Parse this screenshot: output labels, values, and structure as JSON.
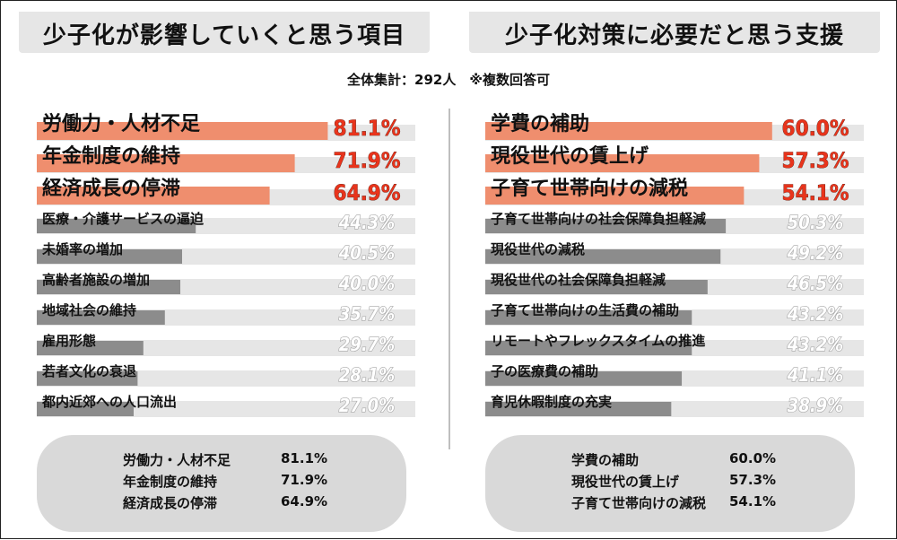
{
  "left_title": "少子化が影響していくと思う項目",
  "right_title": "少子化対策に必要だと思う支援",
  "subtitle": "全体集計：292人　※複数回答可",
  "colors": {
    "highlight": "#ef8e6e",
    "normal": "#8c8c8c",
    "track": "#e6e6e6",
    "value_highlight": "#e8341c",
    "value_normal": "#ffffff",
    "value_normal_outline": "#a6a6a6"
  },
  "chart_data": [
    {
      "type": "bar",
      "title": "少子化が影響していくと思う項目",
      "xlim": [
        0,
        100
      ],
      "categories": [
        "労働力・人材不足",
        "年金制度の維持",
        "経済成長の停滞",
        "医療・介護サービスの逼迫",
        "未婚率の増加",
        "高齢者施設の増加",
        "地域社会の維持",
        "雇用形態",
        "若者文化の衰退",
        "都内近郊への人口流出"
      ],
      "values": [
        81.1,
        71.9,
        64.9,
        44.3,
        40.5,
        40.0,
        35.7,
        29.7,
        28.1,
        27.0
      ],
      "value_labels": [
        "81.1%",
        "71.9%",
        "64.9%",
        "44.3%",
        "40.5%",
        "40.0%",
        "35.7%",
        "29.7%",
        "28.1%",
        "27.0%"
      ],
      "highlighted": [
        true,
        true,
        true,
        false,
        false,
        false,
        false,
        false,
        false,
        false
      ]
    },
    {
      "type": "bar",
      "title": "少子化対策に必要だと思う支援",
      "xlim": [
        0,
        100
      ],
      "categories": [
        "学費の補助",
        "現役世代の賃上げ",
        "子育て世帯向けの減税",
        "子育て世帯向けの社会保障負担軽減",
        "現役世代の減税",
        "現役世代の社会保障負担軽減",
        "子育て世帯向けの生活費の補助",
        "リモートやフレックスタイムの推進",
        "子の医療費の補助",
        "育児休暇制度の充実"
      ],
      "values": [
        60.0,
        57.3,
        54.1,
        50.3,
        49.2,
        46.5,
        43.2,
        43.2,
        41.1,
        38.9
      ],
      "value_labels": [
        "60.0%",
        "57.3%",
        "54.1%",
        "50.3%",
        "49.2%",
        "46.5%",
        "43.2%",
        "43.2%",
        "41.1%",
        "38.9%"
      ],
      "highlighted": [
        true,
        true,
        true,
        false,
        false,
        false,
        false,
        false,
        false,
        false
      ]
    }
  ],
  "summary_left": [
    {
      "label": "労働力・人材不足",
      "value": "81.1%"
    },
    {
      "label": "年金制度の維持",
      "value": "71.9%"
    },
    {
      "label": "経済成長の停滞",
      "value": "64.9%"
    }
  ],
  "summary_right": [
    {
      "label": "学費の補助",
      "value": "60.0%"
    },
    {
      "label": "現役世代の賃上げ",
      "value": "57.3%"
    },
    {
      "label": "子育て世帯向けの減税",
      "value": "54.1%"
    }
  ]
}
